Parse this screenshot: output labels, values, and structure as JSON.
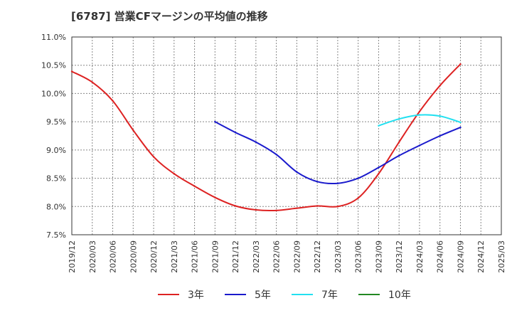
{
  "chart_data": {
    "type": "line",
    "title": "[6787]  営業CFマージンの平均値の推移",
    "xlabel": "",
    "ylabel": "",
    "ylim": [
      7.5,
      11.0
    ],
    "y_ticks": [
      "7.5%",
      "8.0%",
      "8.5%",
      "9.0%",
      "9.5%",
      "10.0%",
      "10.5%",
      "11.0%"
    ],
    "x_ticks": [
      "2019/12",
      "2020/03",
      "2020/06",
      "2020/09",
      "2020/12",
      "2021/03",
      "2021/06",
      "2021/09",
      "2021/12",
      "2022/03",
      "2022/06",
      "2022/09",
      "2022/12",
      "2023/03",
      "2023/06",
      "2023/09",
      "2023/12",
      "2024/03",
      "2024/06",
      "2024/09",
      "2024/12",
      "2025/03"
    ],
    "grid": true,
    "legend_position": "bottom",
    "series": [
      {
        "name": "3年",
        "color": "#dd2222",
        "x": [
          "2019/12",
          "2020/03",
          "2020/06",
          "2020/09",
          "2020/12",
          "2021/03",
          "2021/06",
          "2021/09",
          "2021/12",
          "2022/03",
          "2022/06",
          "2022/09",
          "2022/12",
          "2023/03",
          "2023/06",
          "2023/09",
          "2023/12",
          "2024/03",
          "2024/06",
          "2024/09"
        ],
        "values": [
          10.39,
          10.2,
          9.87,
          9.35,
          8.88,
          8.58,
          8.36,
          8.16,
          8.01,
          7.94,
          7.93,
          7.97,
          8.01,
          8.0,
          8.15,
          8.58,
          9.14,
          9.68,
          10.14,
          10.52
        ]
      },
      {
        "name": "5年",
        "color": "#1a1acc",
        "x": [
          "2021/09",
          "2021/12",
          "2022/03",
          "2022/06",
          "2022/09",
          "2022/12",
          "2023/03",
          "2023/06",
          "2023/09",
          "2023/12",
          "2024/03",
          "2024/06",
          "2024/09"
        ],
        "values": [
          9.5,
          9.31,
          9.14,
          8.92,
          8.61,
          8.44,
          8.41,
          8.5,
          8.69,
          8.9,
          9.08,
          9.25,
          9.4
        ]
      },
      {
        "name": "7年",
        "color": "#22e0f0",
        "x": [
          "2023/09",
          "2023/12",
          "2024/03",
          "2024/06",
          "2024/09"
        ],
        "values": [
          9.43,
          9.55,
          9.62,
          9.6,
          9.49
        ]
      },
      {
        "name": "10年",
        "color": "#228822",
        "x": [],
        "values": []
      }
    ]
  }
}
